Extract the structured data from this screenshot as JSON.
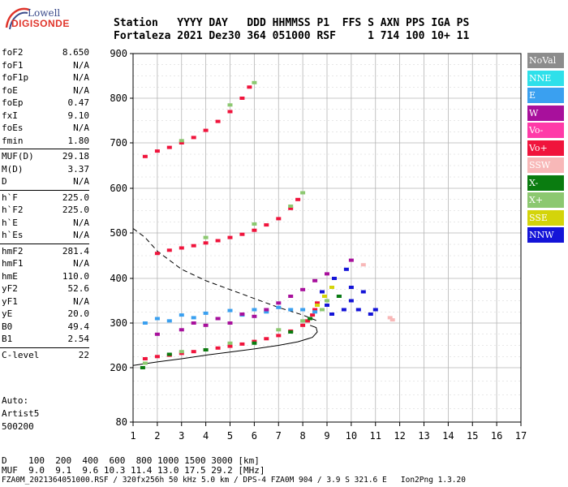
{
  "logo": {
    "line1": "Lowell",
    "line2": "DIGISONDE"
  },
  "header": {
    "line1": "Station   YYYY DAY   DDD HHMMSS P1  FFS S AXN PPS IGA PS",
    "line2": "Fortaleza 2021 Dez30 364 051000 RSF     1 714 100 10+ 11"
  },
  "params": [
    {
      "name": "foF2",
      "value": "8.650"
    },
    {
      "name": "foF1",
      "value": "N/A"
    },
    {
      "name": "foF1p",
      "value": "N/A"
    },
    {
      "name": "foE",
      "value": "N/A"
    },
    {
      "name": "foEp",
      "value": "0.47"
    },
    {
      "name": "fxI",
      "value": "9.10"
    },
    {
      "name": "foEs",
      "value": "N/A"
    },
    {
      "name": "fmin",
      "value": "1.80"
    },
    {
      "name": "MUF(D)",
      "value": "29.18"
    },
    {
      "name": "M(D)",
      "value": "3.37"
    },
    {
      "name": "D",
      "value": "N/A"
    },
    {
      "name": "h`F",
      "value": "225.0"
    },
    {
      "name": "h`F2",
      "value": "225.0"
    },
    {
      "name": "h`E",
      "value": "N/A"
    },
    {
      "name": "h`Es",
      "value": "N/A"
    },
    {
      "name": "hmF2",
      "value": "281.4"
    },
    {
      "name": "hmF1",
      "value": "N/A"
    },
    {
      "name": "hmE",
      "value": "110.0"
    },
    {
      "name": "yF2",
      "value": "52.6"
    },
    {
      "name": "yF1",
      "value": "N/A"
    },
    {
      "name": "yE",
      "value": "20.0"
    },
    {
      "name": "B0",
      "value": "49.4"
    },
    {
      "name": "B1",
      "value": "2.54"
    },
    {
      "name": "C-level",
      "value": "22"
    }
  ],
  "auto": {
    "line1": "Auto:",
    "line2": "Artist5",
    "line3": "500200"
  },
  "legend": [
    {
      "label": "NoVal",
      "color": "#8c8c8c"
    },
    {
      "label": "NNE",
      "color": "#2ee0ea"
    },
    {
      "label": "E",
      "color": "#3aa0f0"
    },
    {
      "label": "W",
      "color": "#a8109c"
    },
    {
      "label": "Vo-",
      "color": "#ff3aa8"
    },
    {
      "label": "Vo+",
      "color": "#f0143c"
    },
    {
      "label": "SSW",
      "color": "#f8b8b8"
    },
    {
      "label": "X-",
      "color": "#0a7c10"
    },
    {
      "label": "X+",
      "color": "#8cc870"
    },
    {
      "label": "SSE",
      "color": "#d4d40a"
    },
    {
      "label": "NNW",
      "color": "#1414d8"
    }
  ],
  "footer": {
    "line1": "D    100  200  400  600  800 1000 1500 3000 [km]",
    "line2": "MUF  9.0  9.1  9.6 10.3 11.4 13.0 17.5 29.2 [MHz]",
    "line3": "FZA0M_2021364051000.RSF / 320fx256h 50 kHz 5.0 km / DPS-4 FZA0M 904 / 3.9 S 321.6 E   Ion2Png 1.3.20"
  },
  "chart_data": {
    "type": "scatter",
    "xlim": [
      1,
      17
    ],
    "ylim": [
      80,
      900
    ],
    "x_ticks": [
      "1",
      "2",
      "3",
      "4",
      "5",
      "6",
      "7",
      "8",
      "9",
      "10",
      "11",
      "12",
      "13",
      "14",
      "15",
      "16",
      "17"
    ],
    "y_ticks": [
      "80",
      "200",
      "300",
      "400",
      "500",
      "600",
      "700",
      "800",
      "900"
    ],
    "grid": true,
    "series": [
      {
        "name": "Vo+",
        "color": "#f0143c",
        "points": [
          [
            1.5,
            220
          ],
          [
            2,
            225
          ],
          [
            2.5,
            228
          ],
          [
            3,
            232
          ],
          [
            3.5,
            236
          ],
          [
            4,
            240
          ],
          [
            4.5,
            244
          ],
          [
            5,
            248
          ],
          [
            5.5,
            253
          ],
          [
            6,
            259
          ],
          [
            6.5,
            265
          ],
          [
            7,
            272
          ],
          [
            7.5,
            282
          ],
          [
            8,
            295
          ],
          [
            8.2,
            305
          ],
          [
            8.4,
            318
          ],
          [
            8.5,
            330
          ],
          [
            8.6,
            345
          ],
          [
            2,
            455
          ],
          [
            2.5,
            462
          ],
          [
            3,
            467
          ],
          [
            3.5,
            472
          ],
          [
            4,
            478
          ],
          [
            4.5,
            483
          ],
          [
            5,
            490
          ],
          [
            5.5,
            497
          ],
          [
            6,
            506
          ],
          [
            6.5,
            518
          ],
          [
            7,
            532
          ],
          [
            7.5,
            555
          ],
          [
            7.8,
            575
          ],
          [
            1.5,
            670
          ],
          [
            2,
            682
          ],
          [
            2.5,
            690
          ],
          [
            3,
            700
          ],
          [
            3.5,
            712
          ],
          [
            4,
            728
          ],
          [
            4.5,
            748
          ],
          [
            5,
            770
          ],
          [
            5.5,
            800
          ],
          [
            5.8,
            825
          ]
        ]
      },
      {
        "name": "X+",
        "color": "#8cc870",
        "points": [
          [
            1.5,
            210
          ],
          [
            3,
            236
          ],
          [
            5,
            255
          ],
          [
            7,
            285
          ],
          [
            8,
            305
          ],
          [
            8.8,
            330
          ],
          [
            9,
            350
          ],
          [
            4,
            490
          ],
          [
            6,
            520
          ],
          [
            7.5,
            560
          ],
          [
            8,
            590
          ],
          [
            3,
            705
          ],
          [
            5,
            785
          ],
          [
            6,
            835
          ]
        ]
      },
      {
        "name": "E",
        "color": "#3aa0f0",
        "points": [
          [
            1.5,
            300
          ],
          [
            2,
            310
          ],
          [
            2.5,
            305
          ],
          [
            3,
            318
          ],
          [
            3.5,
            312
          ],
          [
            4,
            322
          ],
          [
            4.5,
            310
          ],
          [
            5,
            328
          ],
          [
            5.5,
            318
          ],
          [
            6,
            330
          ],
          [
            6.5,
            325
          ],
          [
            7,
            335
          ],
          [
            7.5,
            330
          ],
          [
            8,
            330
          ],
          [
            8.5,
            325
          ]
        ]
      },
      {
        "name": "NNW",
        "color": "#1414d8",
        "points": [
          [
            8.8,
            370
          ],
          [
            9,
            340
          ],
          [
            9.3,
            400
          ],
          [
            9.5,
            360
          ],
          [
            9.7,
            330
          ],
          [
            10,
            380
          ],
          [
            10,
            350
          ],
          [
            10.3,
            330
          ],
          [
            10.5,
            370
          ],
          [
            10.8,
            320
          ],
          [
            11,
            330
          ],
          [
            9.8,
            420
          ],
          [
            9.2,
            320
          ]
        ]
      },
      {
        "name": "W",
        "color": "#a8109c",
        "points": [
          [
            2,
            275
          ],
          [
            3,
            285
          ],
          [
            3.5,
            300
          ],
          [
            4,
            295
          ],
          [
            4.5,
            310
          ],
          [
            5,
            300
          ],
          [
            5.5,
            320
          ],
          [
            6,
            315
          ],
          [
            6.5,
            330
          ],
          [
            7,
            345
          ],
          [
            7.5,
            360
          ],
          [
            8,
            375
          ],
          [
            8.5,
            395
          ],
          [
            9,
            410
          ],
          [
            10,
            440
          ]
        ]
      },
      {
        "name": "X-",
        "color": "#0a7c10",
        "points": [
          [
            1.4,
            200
          ],
          [
            2.5,
            230
          ],
          [
            4,
            240
          ],
          [
            6,
            255
          ],
          [
            7.5,
            280
          ],
          [
            8.3,
            310
          ],
          [
            9.5,
            360
          ]
        ]
      },
      {
        "name": "SSE",
        "color": "#d4d40a",
        "points": [
          [
            8.6,
            340
          ],
          [
            9.2,
            380
          ],
          [
            8.9,
            360
          ]
        ]
      },
      {
        "name": "SSW",
        "color": "#f8b8b8",
        "points": [
          [
            11.7,
            307
          ],
          [
            11.6,
            312
          ],
          [
            10.5,
            430
          ]
        ]
      }
    ],
    "traces": [
      {
        "style": "solid",
        "points": [
          [
            1,
            205
          ],
          [
            2,
            213
          ],
          [
            3,
            220
          ],
          [
            4,
            228
          ],
          [
            5,
            235
          ],
          [
            6,
            242
          ],
          [
            7,
            250
          ],
          [
            7.8,
            258
          ],
          [
            8.4,
            268
          ],
          [
            8.6,
            280
          ],
          [
            8.55,
            290
          ],
          [
            8.3,
            295
          ]
        ]
      },
      {
        "style": "dashed",
        "points": [
          [
            1,
            510
          ],
          [
            1.5,
            490
          ],
          [
            2,
            460
          ],
          [
            3,
            420
          ],
          [
            4,
            395
          ],
          [
            5,
            375
          ],
          [
            6,
            355
          ],
          [
            7,
            335
          ],
          [
            8,
            318
          ],
          [
            8.6,
            305
          ]
        ]
      }
    ]
  }
}
